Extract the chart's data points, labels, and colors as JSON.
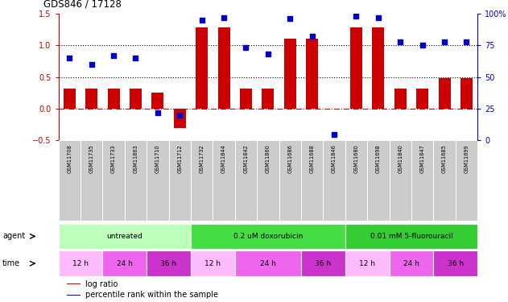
{
  "title": "GDS846 / 17128",
  "samples": [
    "GSM11708",
    "GSM11735",
    "GSM11733",
    "GSM11863",
    "GSM11710",
    "GSM11712",
    "GSM11732",
    "GSM11844",
    "GSM11842",
    "GSM11860",
    "GSM11686",
    "GSM11688",
    "GSM11846",
    "GSM11680",
    "GSM11698",
    "GSM11840",
    "GSM11847",
    "GSM11685",
    "GSM11699"
  ],
  "log_ratio": [
    0.32,
    0.32,
    0.32,
    0.32,
    0.25,
    -0.3,
    1.28,
    1.28,
    0.32,
    0.32,
    1.1,
    1.1,
    0.0,
    1.28,
    1.28,
    0.32,
    0.32,
    0.48,
    0.48
  ],
  "percentile": [
    65,
    60,
    67,
    65,
    22,
    20,
    95,
    97,
    73,
    68,
    96,
    82,
    5,
    98,
    97,
    78,
    75,
    78,
    78
  ],
  "bar_color": "#cc0000",
  "dot_color": "#0000cc",
  "ylim_left": [
    -0.5,
    1.5
  ],
  "ylim_right": [
    0,
    100
  ],
  "yticks_left": [
    -0.5,
    0.0,
    0.5,
    1.0,
    1.5
  ],
  "yticks_right": [
    0,
    25,
    50,
    75,
    100
  ],
  "hlines": [
    0.5,
    1.0
  ],
  "agent_groups": [
    {
      "label": "untreated",
      "start": 0,
      "end": 6,
      "color": "#bbffbb"
    },
    {
      "label": "0.2 uM doxorubicin",
      "start": 6,
      "end": 13,
      "color": "#44dd44"
    },
    {
      "label": "0.01 mM 5-fluorouracil",
      "start": 13,
      "end": 19,
      "color": "#33cc33"
    }
  ],
  "time_groups": [
    {
      "label": "12 h",
      "start": 0,
      "end": 2,
      "color": "#ffbbff"
    },
    {
      "label": "24 h",
      "start": 2,
      "end": 4,
      "color": "#ee66ee"
    },
    {
      "label": "36 h",
      "start": 4,
      "end": 6,
      "color": "#cc33cc"
    },
    {
      "label": "12 h",
      "start": 6,
      "end": 8,
      "color": "#ffbbff"
    },
    {
      "label": "24 h",
      "start": 8,
      "end": 11,
      "color": "#ee66ee"
    },
    {
      "label": "36 h",
      "start": 11,
      "end": 13,
      "color": "#cc33cc"
    },
    {
      "label": "12 h",
      "start": 13,
      "end": 15,
      "color": "#ffbbff"
    },
    {
      "label": "24 h",
      "start": 15,
      "end": 17,
      "color": "#ee66ee"
    },
    {
      "label": "36 h",
      "start": 17,
      "end": 19,
      "color": "#cc33cc"
    }
  ],
  "legend_items": [
    {
      "label": "log ratio",
      "color": "#cc0000"
    },
    {
      "label": "percentile rank within the sample",
      "color": "#0000cc"
    }
  ],
  "label_bg": "#cccccc",
  "background_color": "#ffffff",
  "zero_line_color": "#cc0000",
  "dotted_line_color": "#000000"
}
